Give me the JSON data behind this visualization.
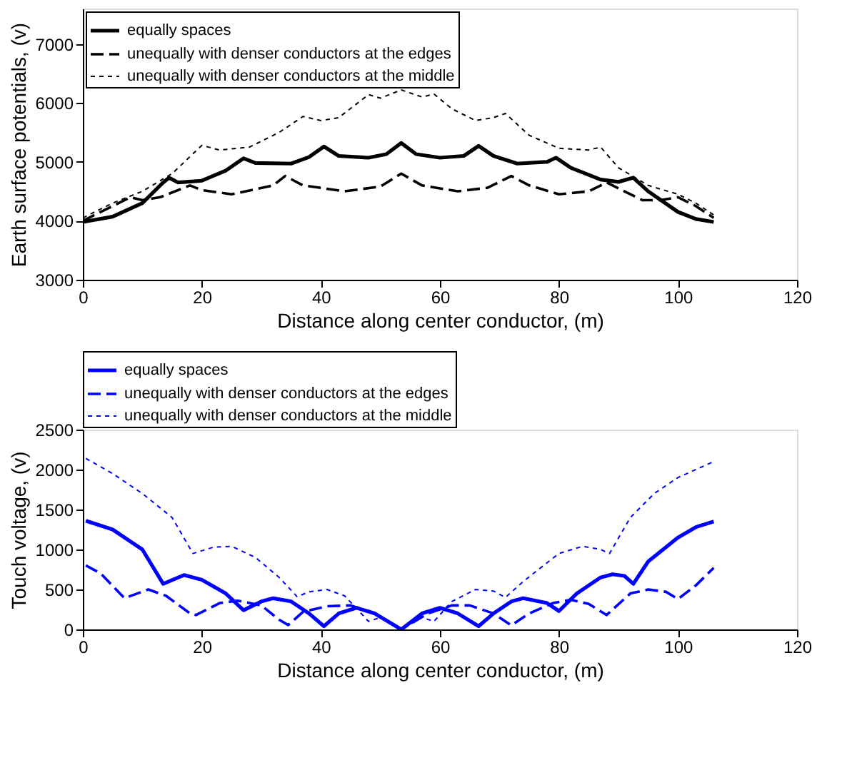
{
  "chart_data": [
    {
      "type": "line",
      "xlabel": "Distance along center conductor, (m)",
      "ylabel": "Earth surface potentials, (v)",
      "xlim": [
        0,
        120
      ],
      "xticks": [
        0,
        20,
        40,
        60,
        80,
        100,
        120
      ],
      "ylim": [
        3000,
        7600
      ],
      "yticks": [
        3000,
        4000,
        5000,
        6000,
        7000
      ],
      "legend": "top left",
      "series": [
        {
          "name": "equally spaces",
          "color": "#000000",
          "line_style": "solid",
          "x": [
            0,
            5,
            10,
            13.5,
            14.5,
            16,
            20,
            24,
            27,
            29,
            35,
            38,
            40.5,
            43,
            48,
            51,
            53.5,
            56,
            60,
            64,
            66.5,
            69,
            73,
            78,
            79.5,
            82,
            87,
            90,
            92.5,
            95,
            100,
            103,
            106
          ],
          "values": [
            3980,
            4070,
            4300,
            4650,
            4730,
            4650,
            4680,
            4850,
            5060,
            4980,
            4970,
            5080,
            5260,
            5100,
            5070,
            5130,
            5320,
            5130,
            5070,
            5100,
            5270,
            5100,
            4970,
            5000,
            5070,
            4900,
            4700,
            4660,
            4730,
            4500,
            4150,
            4030,
            3980
          ]
        },
        {
          "name": "unequally with denser conductors at the edges",
          "color": "#000000",
          "line_style": "dashed",
          "x": [
            0,
            5,
            8,
            10,
            13,
            18,
            20,
            25,
            32,
            34,
            37,
            44,
            50,
            53.5,
            57,
            63,
            68,
            72,
            75,
            80,
            85,
            88,
            91,
            94,
            97,
            100,
            103,
            106
          ],
          "values": [
            4000,
            4250,
            4400,
            4350,
            4400,
            4600,
            4520,
            4450,
            4600,
            4760,
            4600,
            4500,
            4580,
            4800,
            4600,
            4500,
            4560,
            4760,
            4600,
            4450,
            4500,
            4650,
            4500,
            4350,
            4350,
            4400,
            4250,
            4050
          ]
        },
        {
          "name": "unequally with denser conductors at the middle",
          "color": "#000000",
          "line_style": "dotted",
          "x": [
            0,
            5,
            10,
            15,
            20,
            23,
            28,
            33,
            37,
            40,
            43,
            48,
            50,
            53.5,
            57,
            59,
            62,
            66,
            69,
            71,
            75,
            80,
            85,
            87,
            90,
            95,
            100,
            103,
            106
          ],
          "values": [
            4050,
            4300,
            4500,
            4800,
            5280,
            5200,
            5250,
            5500,
            5770,
            5700,
            5750,
            6140,
            6080,
            6220,
            6100,
            6150,
            5900,
            5700,
            5750,
            5820,
            5450,
            5230,
            5200,
            5250,
            4900,
            4600,
            4450,
            4300,
            4100
          ]
        }
      ]
    },
    {
      "type": "line",
      "xlabel": "Distance along center conductor, (m)",
      "ylabel": "Touch voltage, (v)",
      "xlim": [
        0,
        120
      ],
      "xticks": [
        0,
        20,
        40,
        60,
        80,
        100,
        120
      ],
      "ylim": [
        0,
        2500
      ],
      "yticks": [
        0,
        500,
        1000,
        1500,
        2000,
        2500
      ],
      "legend": "top",
      "series": [
        {
          "name": "equally spaces",
          "color": "#0000ff",
          "line_style": "solid",
          "x": [
            0.5,
            5,
            10,
            13.5,
            17,
            20,
            24,
            27,
            30,
            32,
            35,
            38,
            40.5,
            43,
            46,
            49,
            53.5,
            57,
            60,
            63,
            66.5,
            69,
            72,
            74,
            78,
            80,
            83,
            87,
            89,
            91,
            92.5,
            95,
            100,
            103,
            106
          ],
          "values": [
            1360,
            1250,
            1000,
            570,
            680,
            620,
            450,
            240,
            350,
            390,
            350,
            200,
            40,
            200,
            270,
            200,
            0,
            200,
            270,
            200,
            40,
            200,
            350,
            390,
            330,
            230,
            450,
            650,
            690,
            670,
            570,
            850,
            1150,
            1280,
            1350
          ]
        },
        {
          "name": "unequally with denser conductors at the edges",
          "color": "#0000ff",
          "line_style": "dashed",
          "x": [
            0.5,
            3,
            7,
            11,
            14,
            18,
            19,
            23,
            26,
            30,
            33,
            34.5,
            37,
            41,
            45,
            49,
            53.5,
            58,
            62,
            65,
            69,
            72,
            75,
            79,
            82,
            85,
            88,
            92,
            95,
            98,
            100,
            103,
            106
          ],
          "values": [
            800,
            700,
            390,
            500,
            420,
            200,
            180,
            330,
            360,
            300,
            120,
            55,
            220,
            290,
            300,
            200,
            0,
            200,
            300,
            300,
            200,
            50,
            200,
            330,
            370,
            320,
            180,
            450,
            500,
            470,
            380,
            550,
            770
          ]
        },
        {
          "name": "unequally with denser conductors at the middle",
          "color": "#0000ff",
          "line_style": "dotted",
          "x": [
            0.5,
            5,
            10,
            15,
            18.5,
            22,
            25,
            29,
            33,
            36,
            38,
            41,
            44,
            48,
            50,
            53.5,
            57,
            59,
            62,
            66,
            69,
            71,
            74,
            80,
            84,
            87,
            88.5,
            92,
            96,
            100,
            106
          ],
          "values": [
            2140,
            1950,
            1700,
            1400,
            950,
            1030,
            1040,
            900,
            650,
            410,
            470,
            500,
            420,
            100,
            150,
            0,
            150,
            100,
            350,
            500,
            480,
            400,
            600,
            950,
            1040,
            1000,
            950,
            1400,
            1700,
            1900,
            2100
          ]
        }
      ]
    }
  ]
}
